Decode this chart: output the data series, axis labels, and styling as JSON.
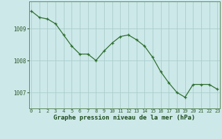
{
  "x": [
    0,
    1,
    2,
    3,
    4,
    5,
    6,
    7,
    8,
    9,
    10,
    11,
    12,
    13,
    14,
    15,
    16,
    17,
    18,
    19,
    20,
    21,
    22,
    23
  ],
  "y": [
    1009.55,
    1009.35,
    1009.3,
    1009.15,
    1008.8,
    1008.45,
    1008.2,
    1008.2,
    1008.0,
    1008.3,
    1008.55,
    1008.75,
    1008.8,
    1008.65,
    1008.45,
    1008.1,
    1007.65,
    1007.3,
    1007.0,
    1006.85,
    1007.25,
    1007.25,
    1007.25,
    1007.1
  ],
  "bg_color": "#cce8e8",
  "line_color": "#2d6e2d",
  "marker_color": "#2d6e2d",
  "grid_color": "#aacccc",
  "xlabel": "Graphe pression niveau de la mer (hPa)",
  "xlabel_color": "#1a4a1a",
  "tick_color": "#2d5a2d",
  "yticks": [
    1007,
    1008,
    1009
  ],
  "xticks": [
    0,
    1,
    2,
    3,
    4,
    5,
    6,
    7,
    8,
    9,
    10,
    11,
    12,
    13,
    14,
    15,
    16,
    17,
    18,
    19,
    20,
    21,
    22,
    23
  ],
  "ylim": [
    1006.5,
    1009.85
  ],
  "xlim": [
    -0.3,
    23.3
  ]
}
